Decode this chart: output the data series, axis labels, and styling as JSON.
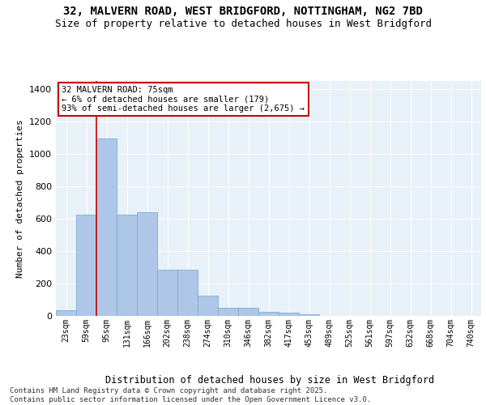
{
  "title_line1": "32, MALVERN ROAD, WEST BRIDGFORD, NOTTINGHAM, NG2 7BD",
  "title_line2": "Size of property relative to detached houses in West Bridgford",
  "xlabel": "Distribution of detached houses by size in West Bridgford",
  "ylabel": "Number of detached properties",
  "bar_labels": [
    "23sqm",
    "59sqm",
    "95sqm",
    "131sqm",
    "166sqm",
    "202sqm",
    "238sqm",
    "274sqm",
    "310sqm",
    "346sqm",
    "382sqm",
    "417sqm",
    "453sqm",
    "489sqm",
    "525sqm",
    "561sqm",
    "597sqm",
    "632sqm",
    "668sqm",
    "704sqm",
    "740sqm"
  ],
  "bar_values": [
    35,
    625,
    1095,
    625,
    640,
    285,
    285,
    125,
    50,
    50,
    25,
    20,
    8,
    0,
    0,
    0,
    0,
    0,
    0,
    0,
    0
  ],
  "bar_color": "#aec6e8",
  "bar_edge_color": "#7aaed0",
  "background_color": "#e8f0f8",
  "grid_color": "#ffffff",
  "vline_x_index": 1,
  "vline_color": "#cc0000",
  "annotation_text": "32 MALVERN ROAD: 75sqm\n← 6% of detached houses are smaller (179)\n93% of semi-detached houses are larger (2,675) →",
  "annotation_box_color": "#cc0000",
  "ylim": [
    0,
    1450
  ],
  "yticks": [
    0,
    200,
    400,
    600,
    800,
    1000,
    1200,
    1400
  ],
  "footnote": "Contains HM Land Registry data © Crown copyright and database right 2025.\nContains public sector information licensed under the Open Government Licence v3.0."
}
